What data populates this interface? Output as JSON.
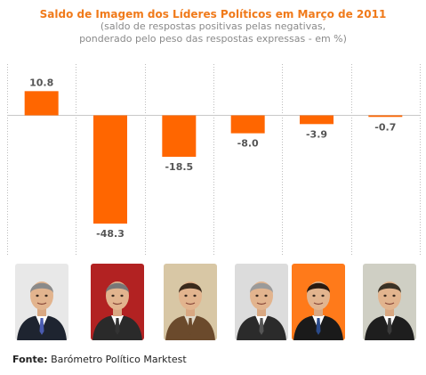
{
  "header": {
    "title": "Saldo de Imagem dos Líderes Políticos em Março de 2011",
    "subtitle_line1": "(saldo de respostas positivas pelas negativas,",
    "subtitle_line2": "ponderado pelo peso das respostas expressas - em %)"
  },
  "chart_data": {
    "type": "bar",
    "title": "Saldo de Imagem dos Líderes Políticos em Março de 2011",
    "values": [
      10.8,
      -48.3,
      -18.5,
      -8.0,
      -3.9,
      -0.7
    ],
    "labels": [
      "10.8",
      "-48.3",
      "-18.5",
      "-8.0",
      "-3.9",
      "-0.7"
    ],
    "ylim": [
      -53,
      13
    ],
    "grid": "vertical-dotted",
    "bar_color": "#ff6600",
    "label_color": "#555555"
  },
  "photos": [
    {
      "icon": "portrait-icon",
      "bg": "#e8e8e8",
      "suit": "#1e2430",
      "shirt": "#ffffff",
      "tie": "#4a5bb0",
      "hair": "#8a8a8a"
    },
    {
      "icon": "portrait-icon",
      "bg": "#b22222",
      "suit": "#2a2a2a",
      "shirt": "#ffffff",
      "tie": "#333333",
      "hair": "#777777"
    },
    {
      "icon": "portrait-icon",
      "bg": "#d8c7a5",
      "suit": "#6b4a2c",
      "shirt": "#e0d8c8",
      "tie": "#6b4a2c",
      "hair": "#3a2a1c"
    },
    {
      "icon": "portrait-icon",
      "bg": "#dcdcdc",
      "suit": "#2b2b2b",
      "shirt": "#ffffff",
      "tie": "#555555",
      "hair": "#9a9a9a"
    },
    {
      "icon": "portrait-icon",
      "bg": "#ff7a1a",
      "suit": "#1a1a1a",
      "shirt": "#ffffff",
      "tie": "#2a4a8a",
      "hair": "#2a1a10"
    },
    {
      "icon": "portrait-icon",
      "bg": "#cfcfc4",
      "suit": "#1e1e1e",
      "shirt": "#ffffff",
      "tie": "#3a3a3a",
      "hair": "#3a3226"
    }
  ],
  "source": {
    "label": "Fonte:",
    "text": "Barómetro Político Marktest"
  }
}
